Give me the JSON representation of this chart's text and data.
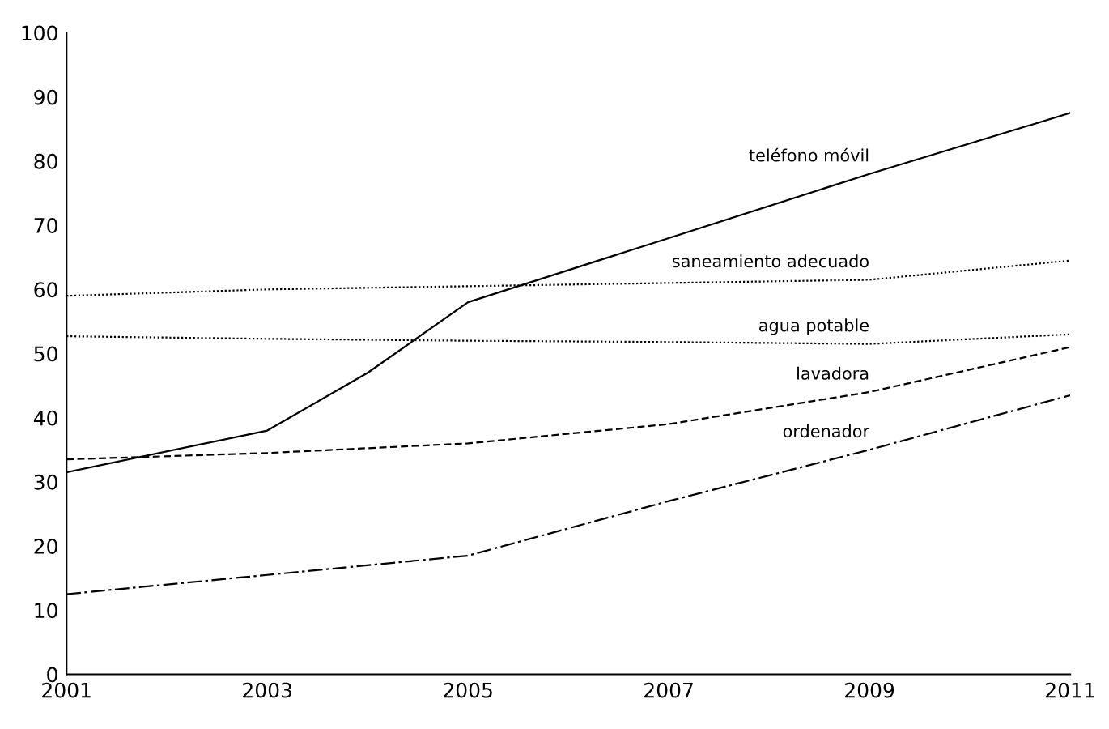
{
  "chart_data": {
    "type": "line",
    "x": [
      2001,
      2003,
      2004,
      2005,
      2007,
      2009,
      2011
    ],
    "series": [
      {
        "name": "teléfono móvil",
        "color": "#000000",
        "line_style": "solid",
        "values": [
          31.5,
          38,
          47,
          58,
          68,
          78,
          87.5
        ]
      },
      {
        "name": "saneamiento adecuado",
        "color": "#000000",
        "line_style": "dotted",
        "values": [
          59,
          60,
          null,
          60.5,
          61,
          61.5,
          64.5
        ]
      },
      {
        "name": "agua potable",
        "color": "#000000",
        "line_style": "dotted",
        "values": [
          52.7,
          52.3,
          null,
          52,
          51.8,
          51.5,
          53
        ]
      },
      {
        "name": "lavadora",
        "color": "#000000",
        "line_style": "dashed",
        "values": [
          33.5,
          34.5,
          null,
          36,
          39,
          44,
          51
        ]
      },
      {
        "name": "ordenador",
        "color": "#000000",
        "line_style": "dashdot",
        "values": [
          12.5,
          15.5,
          null,
          18.5,
          27,
          35,
          43.5
        ]
      }
    ],
    "xlim": [
      2001,
      2011
    ],
    "xticks": [
      2001,
      2003,
      2005,
      2007,
      2009,
      2011
    ],
    "ylim": [
      0,
      100
    ],
    "yticks": [
      0,
      10,
      20,
      30,
      40,
      50,
      60,
      70,
      80,
      90,
      100
    ],
    "grid": false,
    "legend": false,
    "marker": "none"
  }
}
